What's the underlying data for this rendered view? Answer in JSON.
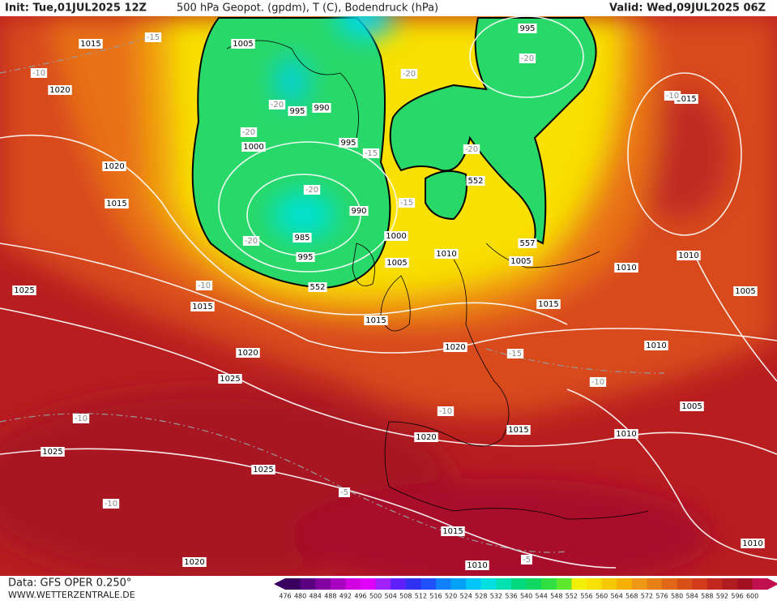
{
  "header": {
    "init": "Init: Tue,01JUL2025 12Z",
    "title": "500 hPa Geopot. (gpdm), T (C), Bodendruck (hPa)",
    "valid": "Valid: Wed,09JUL2025 06Z"
  },
  "footer": {
    "data": "Data: GFS OPER 0.250°",
    "site": "WWW.WETTERZENTRALE.DE"
  },
  "colorbar": {
    "labels": [
      476,
      480,
      484,
      488,
      492,
      496,
      500,
      504,
      508,
      512,
      516,
      520,
      524,
      528,
      532,
      536,
      540,
      544,
      548,
      552,
      556,
      560,
      564,
      568,
      572,
      576,
      580,
      584,
      588,
      592,
      596,
      600
    ],
    "colors": [
      "#3a0060",
      "#5a0080",
      "#8000a0",
      "#a800c0",
      "#d000e0",
      "#e000ff",
      "#a020ff",
      "#6020ff",
      "#3030f0",
      "#2050ff",
      "#1080ff",
      "#00a0ff",
      "#00c8ff",
      "#00e0e0",
      "#00e0b0",
      "#00d880",
      "#10d860",
      "#30e040",
      "#60e830",
      "#f0f000",
      "#f8e000",
      "#f8c800",
      "#f8b000",
      "#f09818",
      "#e88018",
      "#e06818",
      "#d85018",
      "#d03c1c",
      "#c02820",
      "#b01c20",
      "#a01020",
      "#c01050"
    ]
  },
  "pressure_labels": [
    1015,
    1005,
    995,
    1020,
    1015,
    995,
    990,
    995,
    1000,
    1020,
    1015,
    990,
    985,
    995,
    1000,
    1010,
    1005,
    1005,
    1010,
    1010,
    1025,
    1005,
    1015,
    1015,
    1015,
    1020,
    1020,
    1010,
    1025,
    1005,
    1015,
    1010,
    1020,
    1025,
    1025,
    1015,
    1010,
    1010,
    1020
  ],
  "geopotential_labels": [
    552,
    557,
    552
  ],
  "temperature_labels": [
    -15,
    -20,
    -10,
    -20,
    -20,
    -20,
    -15,
    -20,
    -20,
    -15,
    -20,
    -10,
    -15,
    -10,
    -10,
    -10,
    -5,
    -10,
    -5,
    -10
  ]
}
